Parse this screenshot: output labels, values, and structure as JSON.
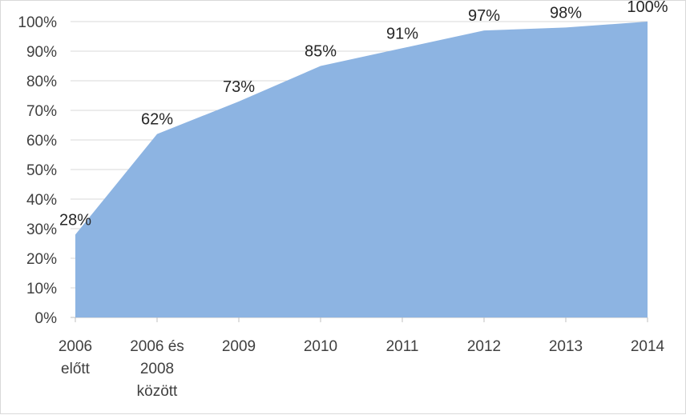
{
  "chart_data": {
    "type": "area",
    "title": "",
    "xlabel": "",
    "ylabel": "",
    "categories": [
      [
        "2006",
        "előtt"
      ],
      [
        "2006 és",
        "2008",
        "között"
      ],
      [
        "2009"
      ],
      [
        "2010"
      ],
      [
        "2011"
      ],
      [
        "2012"
      ],
      [
        "2013"
      ],
      [
        "2014"
      ]
    ],
    "series": [
      {
        "values": [
          28,
          62,
          73,
          85,
          91,
          97,
          98,
          100
        ],
        "data_labels": [
          "28%",
          "62%",
          "73%",
          "85%",
          "91%",
          "97%",
          "98%",
          "100%"
        ],
        "color": "#8db4e2"
      }
    ],
    "ylim": [
      0,
      100
    ],
    "y_ticks": [
      0,
      10,
      20,
      30,
      40,
      50,
      60,
      70,
      80,
      90,
      100
    ],
    "y_tick_labels": [
      "0%",
      "10%",
      "20%",
      "30%",
      "40%",
      "50%",
      "60%",
      "70%",
      "80%",
      "90%",
      "100%"
    ],
    "grid": true,
    "legend": "none",
    "colors": {
      "area": "#8db4e2",
      "gridline": "#d9d9d9",
      "axis": "#bfbfbf",
      "tick_text": "#404040",
      "label_text": "#262626"
    }
  }
}
